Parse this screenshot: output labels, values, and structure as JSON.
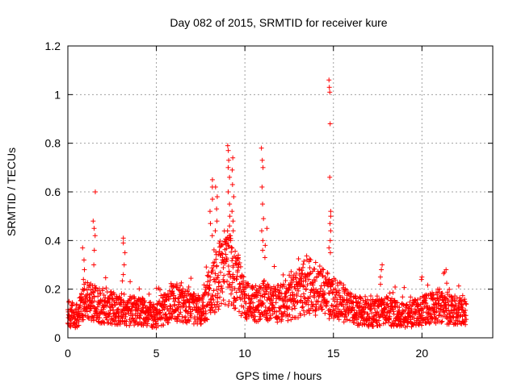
{
  "chart_data": {
    "type": "scatter",
    "title": "Day 082 of 2015, SRMTID for receiver kure",
    "xlabel": "GPS time / hours",
    "ylabel": "SRMTID / TECUs",
    "xlim": [
      0,
      24
    ],
    "ylim": [
      0,
      1.2
    ],
    "x_ticks": [
      0,
      5,
      10,
      15,
      20
    ],
    "y_ticks": [
      0,
      0.2,
      0.4,
      0.6,
      0.8,
      1,
      1.2
    ],
    "x_tick_labels": [
      "0",
      "5",
      "10",
      "15",
      "20"
    ],
    "y_tick_labels": [
      "0",
      "0.2",
      "0.4",
      "0.6",
      "0.8",
      "1",
      "1.2"
    ],
    "grid": true,
    "marker": "plus",
    "color": "#ff0000",
    "series": [
      {
        "name": "SRMTID",
        "x_start": 0.0,
        "x_end": 22.5,
        "baseline": [
          [
            0.0,
            0.1
          ],
          [
            0.5,
            0.09
          ],
          [
            1.0,
            0.15
          ],
          [
            1.5,
            0.14
          ],
          [
            2.0,
            0.13
          ],
          [
            2.5,
            0.12
          ],
          [
            3.0,
            0.12
          ],
          [
            3.5,
            0.11
          ],
          [
            4.0,
            0.11
          ],
          [
            4.5,
            0.1
          ],
          [
            5.0,
            0.09
          ],
          [
            5.5,
            0.12
          ],
          [
            6.0,
            0.15
          ],
          [
            6.5,
            0.14
          ],
          [
            7.0,
            0.12
          ],
          [
            7.5,
            0.11
          ],
          [
            8.0,
            0.18
          ],
          [
            8.5,
            0.25
          ],
          [
            9.0,
            0.3
          ],
          [
            9.5,
            0.25
          ],
          [
            10.0,
            0.15
          ],
          [
            10.5,
            0.14
          ],
          [
            11.0,
            0.16
          ],
          [
            11.5,
            0.14
          ],
          [
            12.0,
            0.14
          ],
          [
            12.5,
            0.16
          ],
          [
            13.0,
            0.18
          ],
          [
            13.5,
            0.22
          ],
          [
            14.0,
            0.2
          ],
          [
            14.5,
            0.18
          ],
          [
            15.0,
            0.17
          ],
          [
            15.5,
            0.14
          ],
          [
            16.0,
            0.12
          ],
          [
            16.5,
            0.11
          ],
          [
            17.0,
            0.1
          ],
          [
            17.5,
            0.1
          ],
          [
            18.0,
            0.11
          ],
          [
            18.5,
            0.1
          ],
          [
            19.0,
            0.09
          ],
          [
            19.5,
            0.1
          ],
          [
            20.0,
            0.11
          ],
          [
            20.5,
            0.12
          ],
          [
            21.0,
            0.13
          ],
          [
            21.5,
            0.12
          ],
          [
            22.0,
            0.11
          ],
          [
            22.5,
            0.11
          ]
        ],
        "spikes": [
          {
            "x": 0.9,
            "values": [
              0.37,
              0.32,
              0.28,
              0.24,
              0.22
            ]
          },
          {
            "x": 1.5,
            "values": [
              0.6,
              0.48,
              0.45,
              0.42,
              0.36,
              0.3
            ]
          },
          {
            "x": 3.2,
            "values": [
              0.41,
              0.39,
              0.35,
              0.3,
              0.26
            ]
          },
          {
            "x": 8.1,
            "values": [
              0.65,
              0.62,
              0.57,
              0.52,
              0.47,
              0.42
            ]
          },
          {
            "x": 8.4,
            "values": [
              0.62,
              0.58,
              0.53,
              0.48,
              0.44
            ]
          },
          {
            "x": 9.1,
            "values": [
              0.79,
              0.77,
              0.73,
              0.7,
              0.66,
              0.6,
              0.55,
              0.5,
              0.46,
              0.42
            ]
          },
          {
            "x": 9.3,
            "values": [
              0.74,
              0.69,
              0.63,
              0.58,
              0.52,
              0.48,
              0.44
            ]
          },
          {
            "x": 11.0,
            "values": [
              0.78,
              0.73,
              0.7,
              0.62,
              0.55,
              0.49,
              0.44,
              0.4,
              0.36
            ]
          },
          {
            "x": 11.2,
            "values": [
              0.45,
              0.38,
              0.33
            ]
          },
          {
            "x": 14.8,
            "values": [
              1.06,
              1.03,
              1.01,
              0.88,
              0.66,
              0.52,
              0.5,
              0.47,
              0.44,
              0.4,
              0.37,
              0.35
            ]
          },
          {
            "x": 17.7,
            "values": [
              0.3,
              0.28,
              0.25,
              0.22
            ]
          },
          {
            "x": 20.0,
            "values": [
              0.25,
              0.24
            ]
          },
          {
            "x": 21.3,
            "values": [
              0.28,
              0.27
            ]
          }
        ]
      }
    ]
  }
}
